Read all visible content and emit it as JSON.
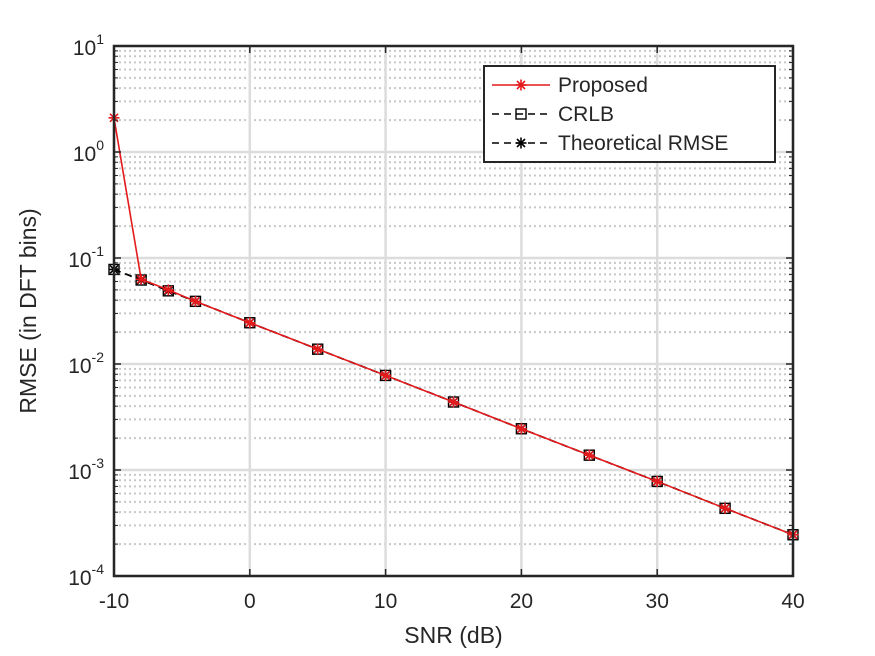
{
  "chart_data": {
    "type": "line",
    "x_scale": "linear",
    "y_scale": "log",
    "xlabel": "SNR (dB)",
    "ylabel": "RMSE (in DFT bins)",
    "xlim": [
      -10,
      40
    ],
    "ylim": [
      0.0001,
      10
    ],
    "x_ticks": [
      -10,
      0,
      10,
      20,
      30,
      40
    ],
    "x_tick_labels": [
      "-10",
      "0",
      "10",
      "20",
      "30",
      "40"
    ],
    "y_ticks": [
      0.0001,
      0.001,
      0.01,
      0.1,
      1,
      10
    ],
    "y_tick_labels": [
      {
        "base": "10",
        "exp": "-4"
      },
      {
        "base": "10",
        "exp": "-3"
      },
      {
        "base": "10",
        "exp": "-2"
      },
      {
        "base": "10",
        "exp": "-1"
      },
      {
        "base": "10",
        "exp": "0"
      },
      {
        "base": "10",
        "exp": "1"
      }
    ],
    "grid": true,
    "minor_grid": true,
    "legend_position": "top-right",
    "series": [
      {
        "name": "Proposed",
        "color": "#e41a1c",
        "line_style": "solid",
        "marker": "asterisk",
        "x": [
          -10,
          -8,
          -6,
          -4,
          0,
          5,
          10,
          15,
          20,
          25,
          30,
          35,
          40
        ],
        "y": [
          2.1,
          0.063,
          0.05,
          0.039,
          0.0245,
          0.0138,
          0.0078,
          0.00438,
          0.00245,
          0.00138,
          0.00078,
          0.000435,
          0.000245
        ]
      },
      {
        "name": "CRLB",
        "color": "#000000",
        "line_style": "dashed",
        "marker": "square",
        "x": [
          -10,
          -8,
          -6,
          -4,
          0,
          5,
          10,
          15,
          20,
          25,
          30,
          35,
          40
        ],
        "y": [
          0.078,
          0.062,
          0.049,
          0.039,
          0.0245,
          0.0138,
          0.0078,
          0.00438,
          0.00245,
          0.00138,
          0.00078,
          0.000435,
          0.000245
        ]
      },
      {
        "name": "Theoretical RMSE",
        "color": "#000000",
        "line_style": "dashed",
        "marker": "asterisk",
        "x": [
          -10,
          -8,
          -6,
          -4,
          0,
          5,
          10,
          15,
          20,
          25,
          30,
          35,
          40
        ],
        "y": [
          0.078,
          0.062,
          0.049,
          0.039,
          0.0245,
          0.0138,
          0.0078,
          0.00438,
          0.00245,
          0.00138,
          0.00078,
          0.000435,
          0.000245
        ]
      }
    ]
  }
}
